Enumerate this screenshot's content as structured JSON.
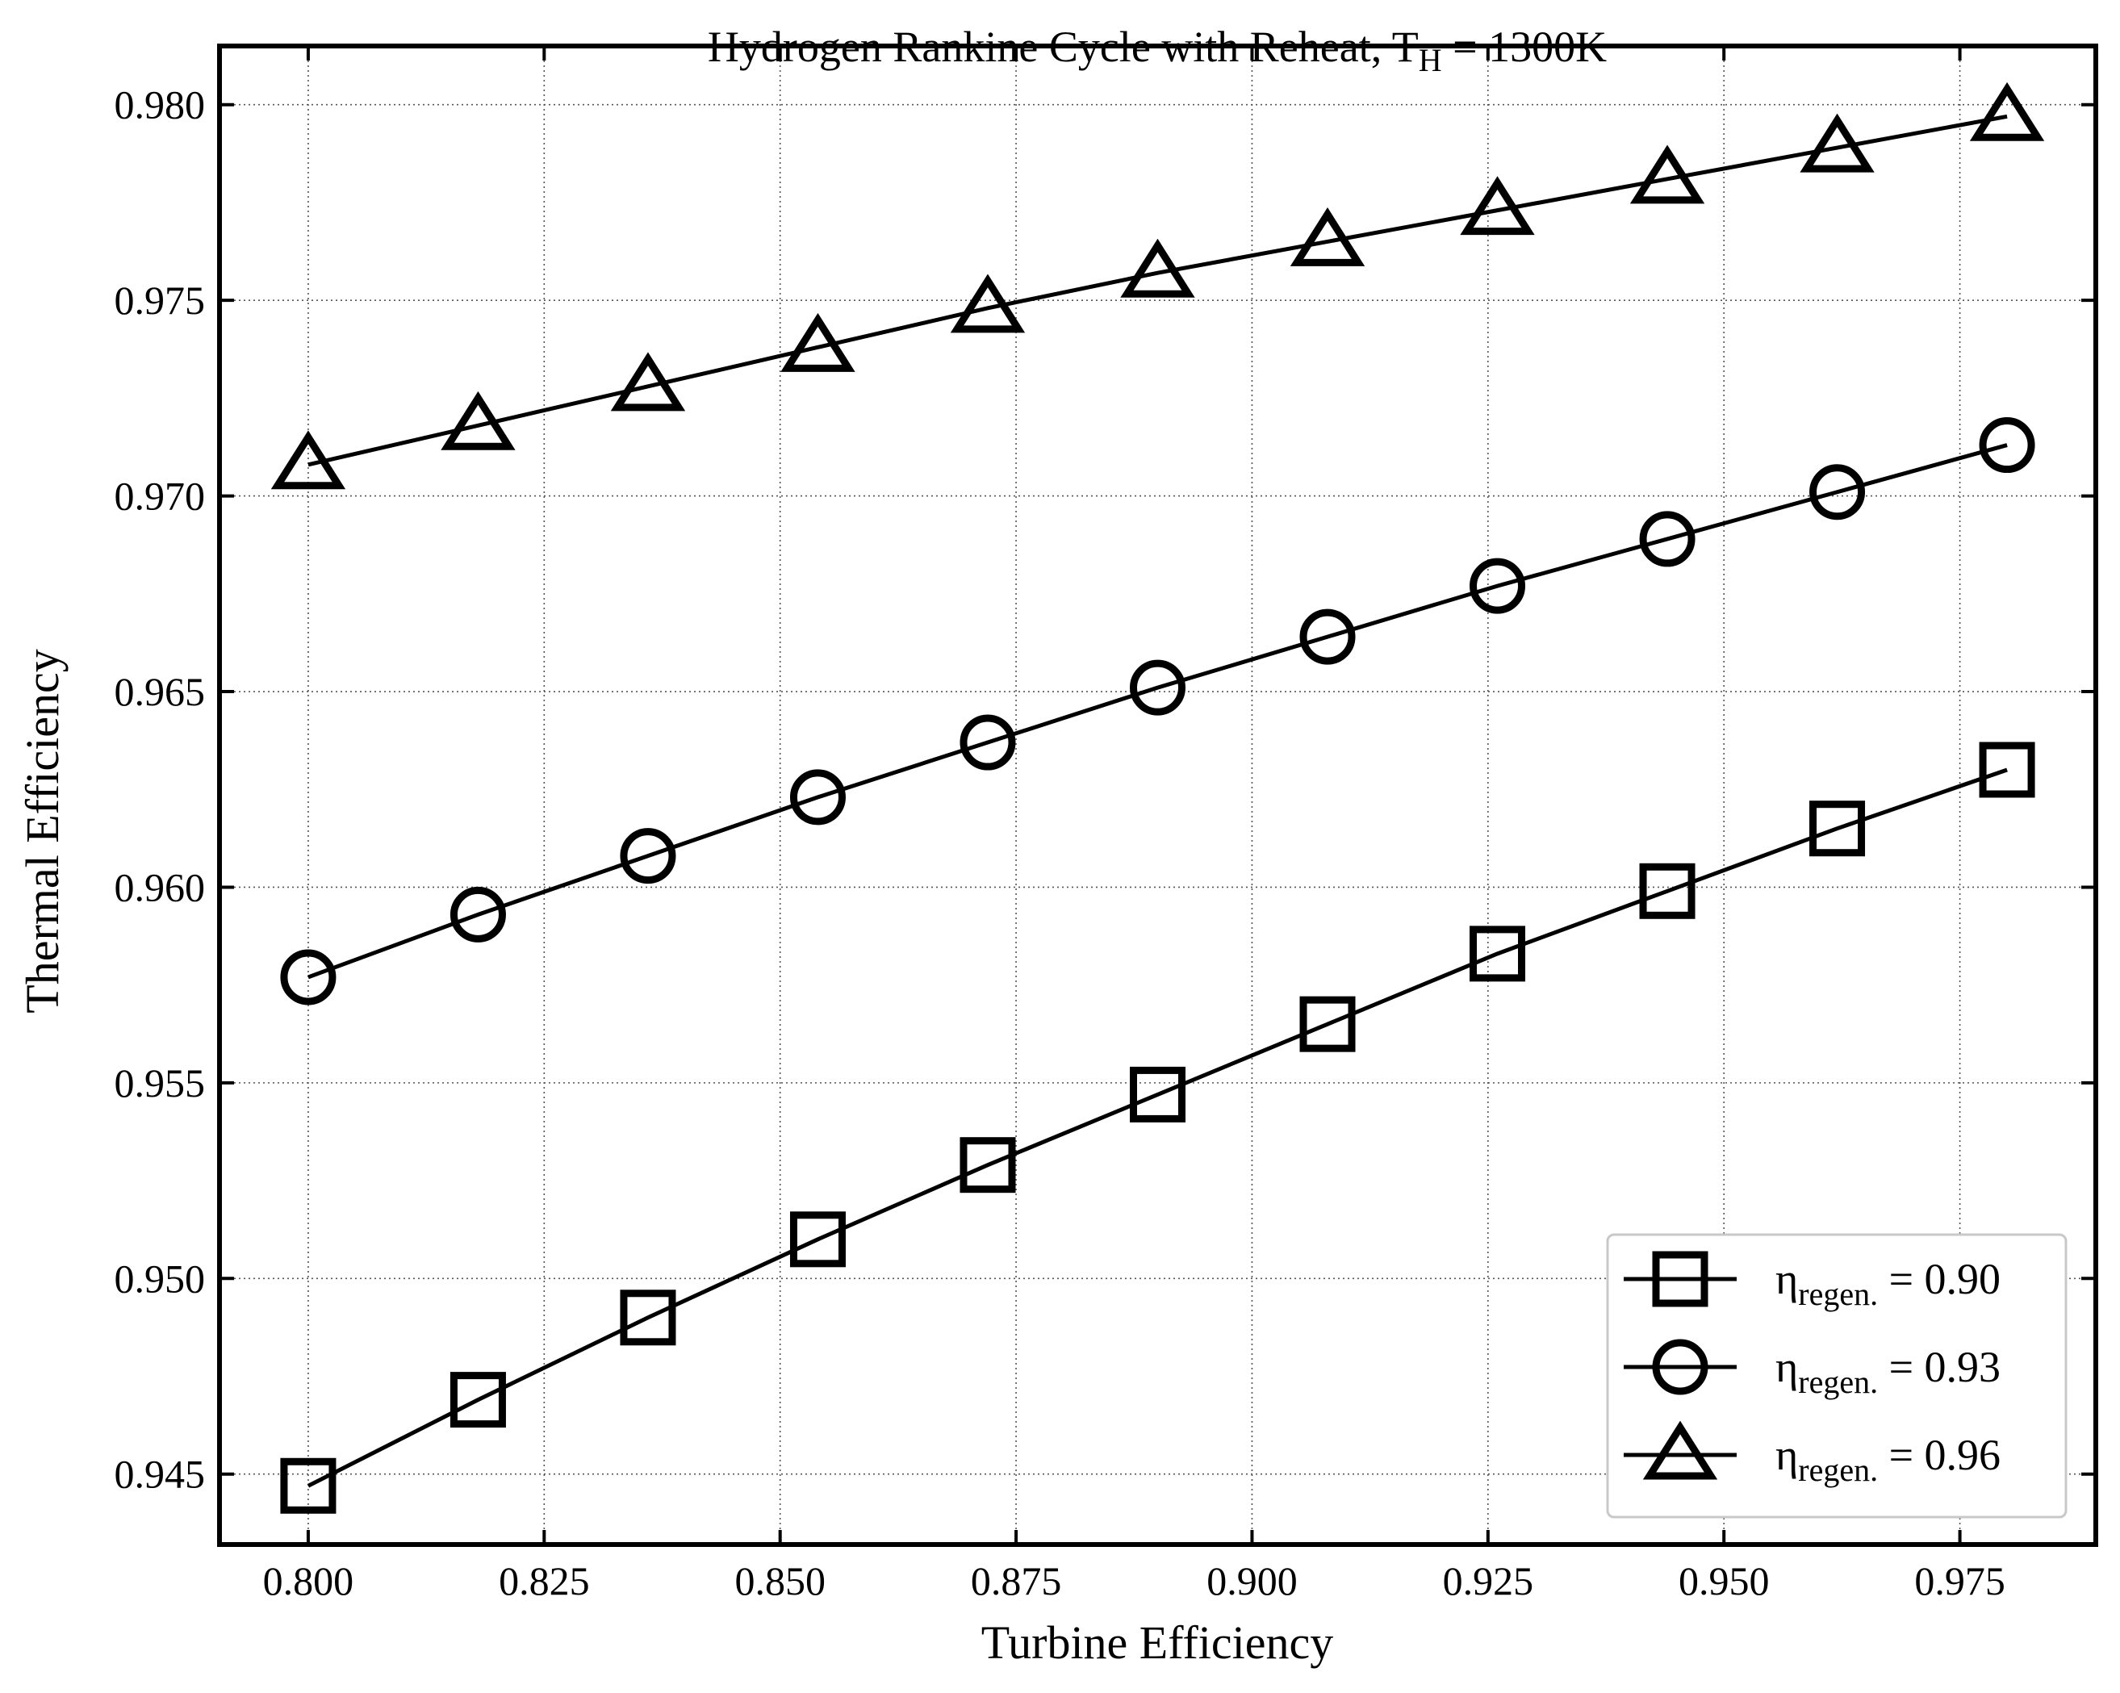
{
  "chart_data": {
    "type": "line",
    "title": {
      "prefix": "Hydrogen Rankine Cycle with Reheat, T",
      "subscript": "H",
      "suffix": " = 1300K"
    },
    "xlabel": "Turbine Efficiency",
    "ylabel": "Thermal Efficiency",
    "xlim": [
      0.7906,
      0.9894
    ],
    "ylim": [
      0.9432,
      0.9815
    ],
    "xticks": [
      "0.800",
      "0.825",
      "0.850",
      "0.875",
      "0.900",
      "0.925",
      "0.950",
      "0.975"
    ],
    "yticks": [
      "0.945",
      "0.950",
      "0.955",
      "0.960",
      "0.965",
      "0.970",
      "0.975",
      "0.980"
    ],
    "grid": true,
    "legend_position": "lower-right",
    "x": [
      0.8,
      0.818,
      0.836,
      0.854,
      0.872,
      0.89,
      0.908,
      0.926,
      0.944,
      0.962,
      0.98
    ],
    "series": [
      {
        "name": "0.90",
        "legend": {
          "symbol": "η",
          "subscript": "regen.",
          "value": " = 0.90"
        },
        "marker": "square",
        "values": [
          0.9447,
          0.9469,
          0.949,
          0.951,
          0.9529,
          0.9547,
          0.9565,
          0.9583,
          0.9599,
          0.9615,
          0.963
        ]
      },
      {
        "name": "0.93",
        "legend": {
          "symbol": "η",
          "subscript": "regen.",
          "value": " = 0.93"
        },
        "marker": "circle",
        "values": [
          0.9577,
          0.9593,
          0.9608,
          0.9623,
          0.9637,
          0.9651,
          0.9664,
          0.9677,
          0.9689,
          0.9701,
          0.9713
        ]
      },
      {
        "name": "0.96",
        "legend": {
          "symbol": "η",
          "subscript": "regen.",
          "value": " = 0.96"
        },
        "marker": "triangle",
        "values": [
          0.9708,
          0.9718,
          0.9728,
          0.9738,
          0.9748,
          0.9757,
          0.9765,
          0.9773,
          0.9781,
          0.9789,
          0.9797
        ]
      }
    ]
  }
}
